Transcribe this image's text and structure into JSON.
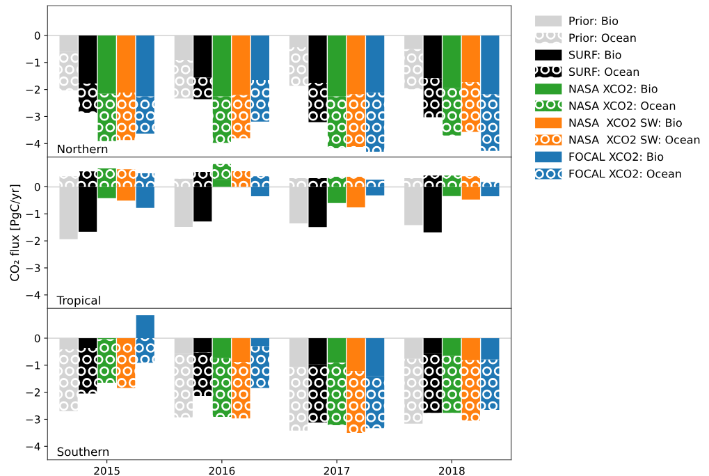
{
  "chart_data": [
    {
      "type": "bar",
      "title": "Northern",
      "categories": [
        null,
        null,
        "2015",
        null,
        null,
        null,
        null,
        null,
        "2016",
        null,
        null,
        null,
        null,
        null,
        "2017",
        null,
        null,
        null,
        null,
        null,
        "2018",
        null,
        null
      ],
      "stacked": true,
      "ylim": [
        -4.5,
        1.1
      ],
      "yticks": [
        {
          "value": -4,
          "label": "−4"
        },
        {
          "value": -3,
          "label": "−3"
        },
        {
          "value": -2,
          "label": "−2"
        },
        {
          "value": -1,
          "label": "−1"
        },
        0
      ],
      "tick_labels": "y",
      "grid": false,
      "legend": "right",
      "ref_lines": [
        {
          "axis": "y",
          "value": 0,
          "color": "#dcdcdc"
        }
      ],
      "series": [
        {
          "name": "Prior: Bio",
          "color": "#d3d3d3",
          "values": [
            -0.6,
            null,
            null,
            null,
            null,
            null,
            -0.9,
            null,
            null,
            null,
            null,
            null,
            -0.44,
            null,
            null,
            null,
            null,
            null,
            -0.51,
            null,
            null,
            null,
            null
          ]
        },
        {
          "name": "Prior: Ocean",
          "color": "#d3d3d3",
          "values": [
            -1.43,
            null,
            null,
            null,
            null,
            null,
            -1.43,
            null,
            null,
            null,
            null,
            null,
            -1.42,
            null,
            null,
            null,
            null,
            null,
            -1.48,
            null,
            null,
            null,
            null
          ]
        },
        {
          "name": "SURF: Bio",
          "color": "#000000",
          "values": [
            null,
            -1.78,
            null,
            null,
            null,
            null,
            null,
            -1.55,
            null,
            null,
            null,
            null,
            null,
            -1.75,
            null,
            null,
            null,
            null,
            null,
            -1.58,
            null,
            null,
            null
          ]
        },
        {
          "name": "SURF: Ocean",
          "color": "#000000",
          "values": [
            null,
            -1.08,
            null,
            null,
            null,
            null,
            null,
            -0.81,
            null,
            null,
            null,
            null,
            null,
            -1.46,
            null,
            null,
            null,
            null,
            null,
            -1.45,
            null,
            null,
            null
          ]
        },
        {
          "name": "NASA XCO2: Bio",
          "color": "#2ca02c",
          "values": [
            null,
            null,
            -2.16,
            null,
            null,
            null,
            null,
            null,
            -2.26,
            null,
            null,
            null,
            null,
            null,
            -2.26,
            null,
            null,
            null,
            null,
            null,
            -1.95,
            null,
            null
          ]
        },
        {
          "name": "NASA XCO2: Ocean",
          "color": "#2ca02c",
          "values": [
            null,
            null,
            -1.75,
            null,
            null,
            null,
            null,
            null,
            -1.71,
            null,
            null,
            null,
            null,
            null,
            -1.91,
            null,
            null,
            null,
            null,
            null,
            -1.75,
            null,
            null
          ]
        },
        {
          "name": "NASA  XCO2 SW: Bio",
          "color": "#ff7f0e",
          "values": [
            null,
            null,
            null,
            -2.11,
            null,
            null,
            null,
            null,
            null,
            -2.21,
            null,
            null,
            null,
            null,
            null,
            -2.18,
            null,
            null,
            null,
            null,
            null,
            -1.73,
            null
          ]
        },
        {
          "name": "NASA  XCO2 SW: Ocean",
          "color": "#ff7f0e",
          "values": [
            null,
            null,
            null,
            -1.76,
            null,
            null,
            null,
            null,
            null,
            -1.59,
            null,
            null,
            null,
            null,
            null,
            -1.94,
            null,
            null,
            null,
            null,
            null,
            -1.84,
            null
          ]
        },
        {
          "name": "FOCAL XCO2: Bio",
          "color": "#1f77b4",
          "values": [
            null,
            null,
            null,
            null,
            -2.26,
            null,
            null,
            null,
            null,
            null,
            -1.65,
            null,
            null,
            null,
            null,
            null,
            -2.12,
            null,
            null,
            null,
            null,
            null,
            -2.18
          ]
        },
        {
          "name": "FOCAL XCO2: Ocean",
          "color": "#1f77b4",
          "values": [
            null,
            null,
            null,
            null,
            -1.37,
            null,
            null,
            null,
            null,
            null,
            -1.54,
            null,
            null,
            null,
            null,
            null,
            -2.18,
            null,
            null,
            null,
            null,
            null,
            -2.09
          ]
        }
      ]
    },
    {
      "type": "bar",
      "title": "Tropical",
      "ylabel": "CO₂ flux [PgC/yr]",
      "categories": [
        null,
        null,
        "2015",
        null,
        null,
        null,
        null,
        null,
        "2016",
        null,
        null,
        null,
        null,
        null,
        "2017",
        null,
        null,
        null,
        null,
        null,
        "2018",
        null,
        null
      ],
      "stacked": true,
      "ylim": [
        -4.5,
        1.1
      ],
      "yticks": [
        {
          "value": -4,
          "label": "−4"
        },
        {
          "value": -3,
          "label": "−3"
        },
        {
          "value": -2,
          "label": "−2"
        },
        {
          "value": -1,
          "label": "−1"
        },
        0
      ],
      "tick_labels": "y",
      "grid": false,
      "ref_lines": [
        {
          "axis": "y",
          "value": 0,
          "color": "#dcdcdc"
        }
      ],
      "series": [
        {
          "color": "#d3d3d3",
          "values": [
            -1.94,
            null,
            null,
            null,
            null,
            null,
            -1.48,
            null,
            null,
            null,
            null,
            null,
            -1.35,
            null,
            null,
            null,
            null,
            null,
            -1.42,
            null,
            null,
            null,
            null
          ]
        },
        {
          "color": "#d3d3d3",
          "values": [
            0.39,
            null,
            null,
            null,
            null,
            null,
            0.3,
            null,
            null,
            null,
            null,
            null,
            0.32,
            null,
            null,
            null,
            null,
            null,
            0.32,
            null,
            null,
            null,
            null
          ]
        },
        {
          "color": "#000000",
          "values": [
            null,
            -1.66,
            null,
            null,
            null,
            null,
            null,
            -1.28,
            null,
            null,
            null,
            null,
            null,
            -1.49,
            null,
            null,
            null,
            null,
            null,
            -1.69,
            null,
            null,
            null
          ]
        },
        {
          "color": "#000000",
          "values": [
            null,
            0.57,
            null,
            null,
            null,
            null,
            null,
            0.55,
            null,
            null,
            null,
            null,
            null,
            0.32,
            null,
            null,
            null,
            null,
            null,
            0.42,
            null,
            null,
            null
          ]
        },
        {
          "color": "#2ca02c",
          "values": [
            null,
            null,
            -0.42,
            null,
            null,
            null,
            null,
            null,
            0.26,
            null,
            null,
            null,
            null,
            null,
            -0.6,
            null,
            null,
            null,
            null,
            null,
            -0.34,
            null,
            null
          ]
        },
        {
          "color": "#2ca02c",
          "values": [
            null,
            null,
            0.68,
            null,
            null,
            null,
            null,
            null,
            0.58,
            null,
            null,
            null,
            null,
            null,
            0.37,
            null,
            null,
            null,
            null,
            null,
            0.42,
            null,
            null
          ]
        },
        {
          "color": "#ff7f0e",
          "values": [
            null,
            null,
            null,
            -0.51,
            null,
            null,
            null,
            null,
            null,
            0.0,
            null,
            null,
            null,
            null,
            null,
            -0.76,
            null,
            null,
            null,
            null,
            null,
            -0.47,
            null
          ]
        },
        {
          "color": "#ff7f0e",
          "values": [
            null,
            null,
            null,
            0.65,
            null,
            null,
            null,
            null,
            null,
            0.58,
            null,
            null,
            null,
            null,
            null,
            0.37,
            null,
            null,
            null,
            null,
            null,
            0.39,
            null
          ]
        },
        {
          "color": "#1f77b4",
          "values": [
            null,
            null,
            null,
            null,
            -0.78,
            null,
            null,
            null,
            null,
            null,
            -0.35,
            null,
            null,
            null,
            null,
            null,
            -0.32,
            null,
            null,
            null,
            null,
            null,
            -0.35
          ]
        },
        {
          "color": "#1f77b4",
          "values": [
            null,
            null,
            null,
            null,
            0.5,
            null,
            null,
            null,
            null,
            null,
            0.39,
            null,
            null,
            null,
            null,
            null,
            0.26,
            null,
            null,
            null,
            null,
            null,
            0.17
          ]
        }
      ]
    },
    {
      "type": "bar",
      "title": "Southern",
      "categories": [
        null,
        null,
        "2015",
        null,
        null,
        null,
        null,
        null,
        "2016",
        null,
        null,
        null,
        null,
        null,
        "2017",
        null,
        null,
        null,
        null,
        null,
        "2018",
        null,
        null
      ],
      "stacked": true,
      "ylim": [
        -4.5,
        1.1
      ],
      "yticks": [
        {
          "value": -4,
          "label": "−4"
        },
        {
          "value": -3,
          "label": "−3"
        },
        {
          "value": -2,
          "label": "−2"
        },
        {
          "value": -1,
          "label": "−1"
        },
        0
      ],
      "grid": false,
      "ref_lines": [
        {
          "axis": "y",
          "value": 0,
          "color": "#dcdcdc"
        }
      ],
      "series": [
        {
          "color": "#d3d3d3",
          "values": [
            -0.41,
            null,
            null,
            null,
            null,
            null,
            -0.58,
            null,
            null,
            null,
            null,
            null,
            -1.07,
            null,
            null,
            null,
            null,
            null,
            -0.77,
            null,
            null,
            null,
            null
          ]
        },
        {
          "color": "#d3d3d3",
          "values": [
            -2.29,
            null,
            null,
            null,
            null,
            null,
            -2.35,
            null,
            null,
            null,
            null,
            null,
            -2.35,
            null,
            null,
            null,
            null,
            null,
            -2.39,
            null,
            null,
            null,
            null
          ]
        },
        {
          "color": "#000000",
          "values": [
            null,
            -0.36,
            null,
            null,
            null,
            null,
            null,
            -0.53,
            null,
            null,
            null,
            null,
            null,
            -0.97,
            null,
            null,
            null,
            null,
            null,
            -0.56,
            null,
            null,
            null
          ]
        },
        {
          "color": "#000000",
          "values": [
            null,
            -1.69,
            null,
            null,
            null,
            null,
            null,
            -1.61,
            null,
            null,
            null,
            null,
            null,
            -2.15,
            null,
            null,
            null,
            null,
            null,
            -2.2,
            null,
            null,
            null
          ]
        },
        {
          "color": "#2ca02c",
          "values": [
            null,
            null,
            -0.04,
            null,
            null,
            null,
            null,
            null,
            -0.74,
            null,
            null,
            null,
            null,
            null,
            -0.91,
            null,
            null,
            null,
            null,
            null,
            -0.66,
            null,
            null
          ]
        },
        {
          "color": "#2ca02c",
          "values": [
            null,
            null,
            -1.61,
            null,
            null,
            null,
            null,
            null,
            -2.17,
            null,
            null,
            null,
            null,
            null,
            -2.31,
            null,
            null,
            null,
            null,
            null,
            -2.1,
            null,
            null
          ]
        },
        {
          "color": "#ff7f0e",
          "values": [
            null,
            null,
            null,
            -0.13,
            null,
            null,
            null,
            null,
            null,
            -0.88,
            null,
            null,
            null,
            null,
            null,
            -1.22,
            null,
            null,
            null,
            null,
            null,
            -0.81,
            null
          ]
        },
        {
          "color": "#ff7f0e",
          "values": [
            null,
            null,
            null,
            -1.71,
            null,
            null,
            null,
            null,
            null,
            -2.09,
            null,
            null,
            null,
            null,
            null,
            -2.28,
            null,
            null,
            null,
            null,
            null,
            -2.24,
            null
          ]
        },
        {
          "color": "#1f77b4",
          "values": [
            null,
            null,
            null,
            null,
            0.85,
            null,
            null,
            null,
            null,
            null,
            -0.3,
            null,
            null,
            null,
            null,
            null,
            -1.41,
            null,
            null,
            null,
            null,
            null,
            -0.79
          ]
        },
        {
          "color": "#1f77b4",
          "values": [
            null,
            null,
            null,
            null,
            -0.91,
            null,
            null,
            null,
            null,
            null,
            -1.54,
            null,
            null,
            null,
            null,
            null,
            -1.92,
            null,
            null,
            null,
            null,
            null,
            -1.86
          ]
        }
      ]
    }
  ]
}
